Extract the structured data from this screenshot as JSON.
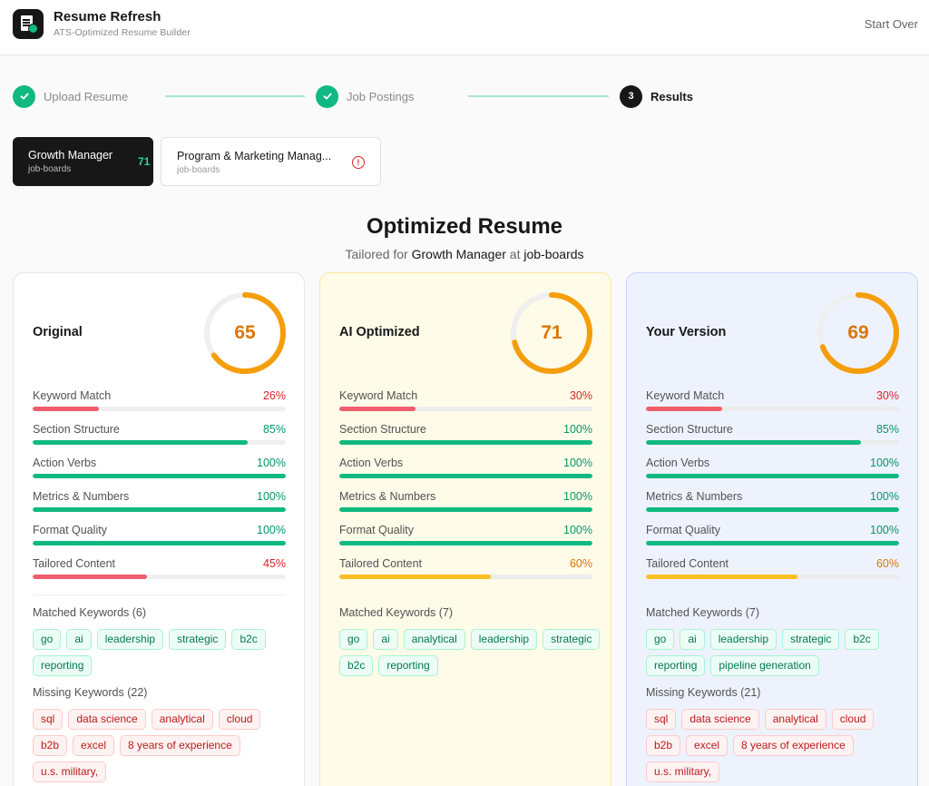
{
  "app": {
    "title": "Resume Refresh",
    "subtitle": "ATS-Optimized Resume Builder",
    "start_over_label": "Start Over"
  },
  "stepper": [
    {
      "label": "Upload Resume",
      "state": "done"
    },
    {
      "label": "Job Postings",
      "state": "done"
    },
    {
      "label": "Results",
      "state": "active",
      "number": "3"
    }
  ],
  "job_tabs": [
    {
      "title": "Growth Manager",
      "company": "job-boards",
      "score": "71",
      "active": true
    },
    {
      "title": "Program & Marketing Manag...",
      "company": "job-boards",
      "alert": "!",
      "active": false
    }
  ],
  "heading": {
    "title": "Optimized Resume",
    "prefix": "Tailored for",
    "role": "Growth Manager",
    "connector": "at",
    "company": "job-boards"
  },
  "colors": {
    "green": "#10b981",
    "red": "#f05d6c",
    "amber": "#fbbf24",
    "score_orange": "#f59e0b"
  },
  "cards": [
    {
      "title": "Original",
      "score": 65,
      "metrics": [
        {
          "label": "Keyword Match",
          "value": 26,
          "display": "26%",
          "status": "bad"
        },
        {
          "label": "Section Structure",
          "value": 85,
          "display": "85%",
          "status": "good"
        },
        {
          "label": "Action Verbs",
          "value": 100,
          "display": "100%",
          "status": "good"
        },
        {
          "label": "Metrics & Numbers",
          "value": 100,
          "display": "100%",
          "status": "good"
        },
        {
          "label": "Format Quality",
          "value": 100,
          "display": "100%",
          "status": "good"
        },
        {
          "label": "Tailored Content",
          "value": 45,
          "display": "45%",
          "status": "bad"
        }
      ],
      "matched_label": "Matched Keywords (6)",
      "matched": [
        "go",
        "ai",
        "leadership",
        "strategic",
        "b2c",
        "reporting"
      ],
      "missing_label": "Missing Keywords (22)",
      "missing": [
        "sql",
        "data science",
        "analytical",
        "cloud",
        "b2b",
        "excel",
        "8 years of experience",
        "u.s. military,"
      ]
    },
    {
      "title": "AI Optimized",
      "score": 71,
      "metrics": [
        {
          "label": "Keyword Match",
          "value": 30,
          "display": "30%",
          "status": "bad"
        },
        {
          "label": "Section Structure",
          "value": 100,
          "display": "100%",
          "status": "good"
        },
        {
          "label": "Action Verbs",
          "value": 100,
          "display": "100%",
          "status": "good"
        },
        {
          "label": "Metrics & Numbers",
          "value": 100,
          "display": "100%",
          "status": "good"
        },
        {
          "label": "Format Quality",
          "value": 100,
          "display": "100%",
          "status": "good"
        },
        {
          "label": "Tailored Content",
          "value": 60,
          "display": "60%",
          "status": "warn"
        }
      ],
      "matched_label": "Matched Keywords (7)",
      "matched": [
        "go",
        "ai",
        "analytical",
        "leadership",
        "strategic",
        "b2c",
        "reporting"
      ],
      "missing_label": "",
      "missing": []
    },
    {
      "title": "Your Version",
      "score": 69,
      "metrics": [
        {
          "label": "Keyword Match",
          "value": 30,
          "display": "30%",
          "status": "bad"
        },
        {
          "label": "Section Structure",
          "value": 85,
          "display": "85%",
          "status": "good"
        },
        {
          "label": "Action Verbs",
          "value": 100,
          "display": "100%",
          "status": "good"
        },
        {
          "label": "Metrics & Numbers",
          "value": 100,
          "display": "100%",
          "status": "good"
        },
        {
          "label": "Format Quality",
          "value": 100,
          "display": "100%",
          "status": "good"
        },
        {
          "label": "Tailored Content",
          "value": 60,
          "display": "60%",
          "status": "warn"
        }
      ],
      "matched_label": "Matched Keywords (7)",
      "matched": [
        "go",
        "ai",
        "leadership",
        "strategic",
        "b2c",
        "reporting",
        "pipeline generation"
      ],
      "missing_label": "Missing Keywords (21)",
      "missing": [
        "sql",
        "data science",
        "analytical",
        "cloud",
        "b2b",
        "excel",
        "8 years of experience",
        "u.s. military,"
      ]
    }
  ]
}
